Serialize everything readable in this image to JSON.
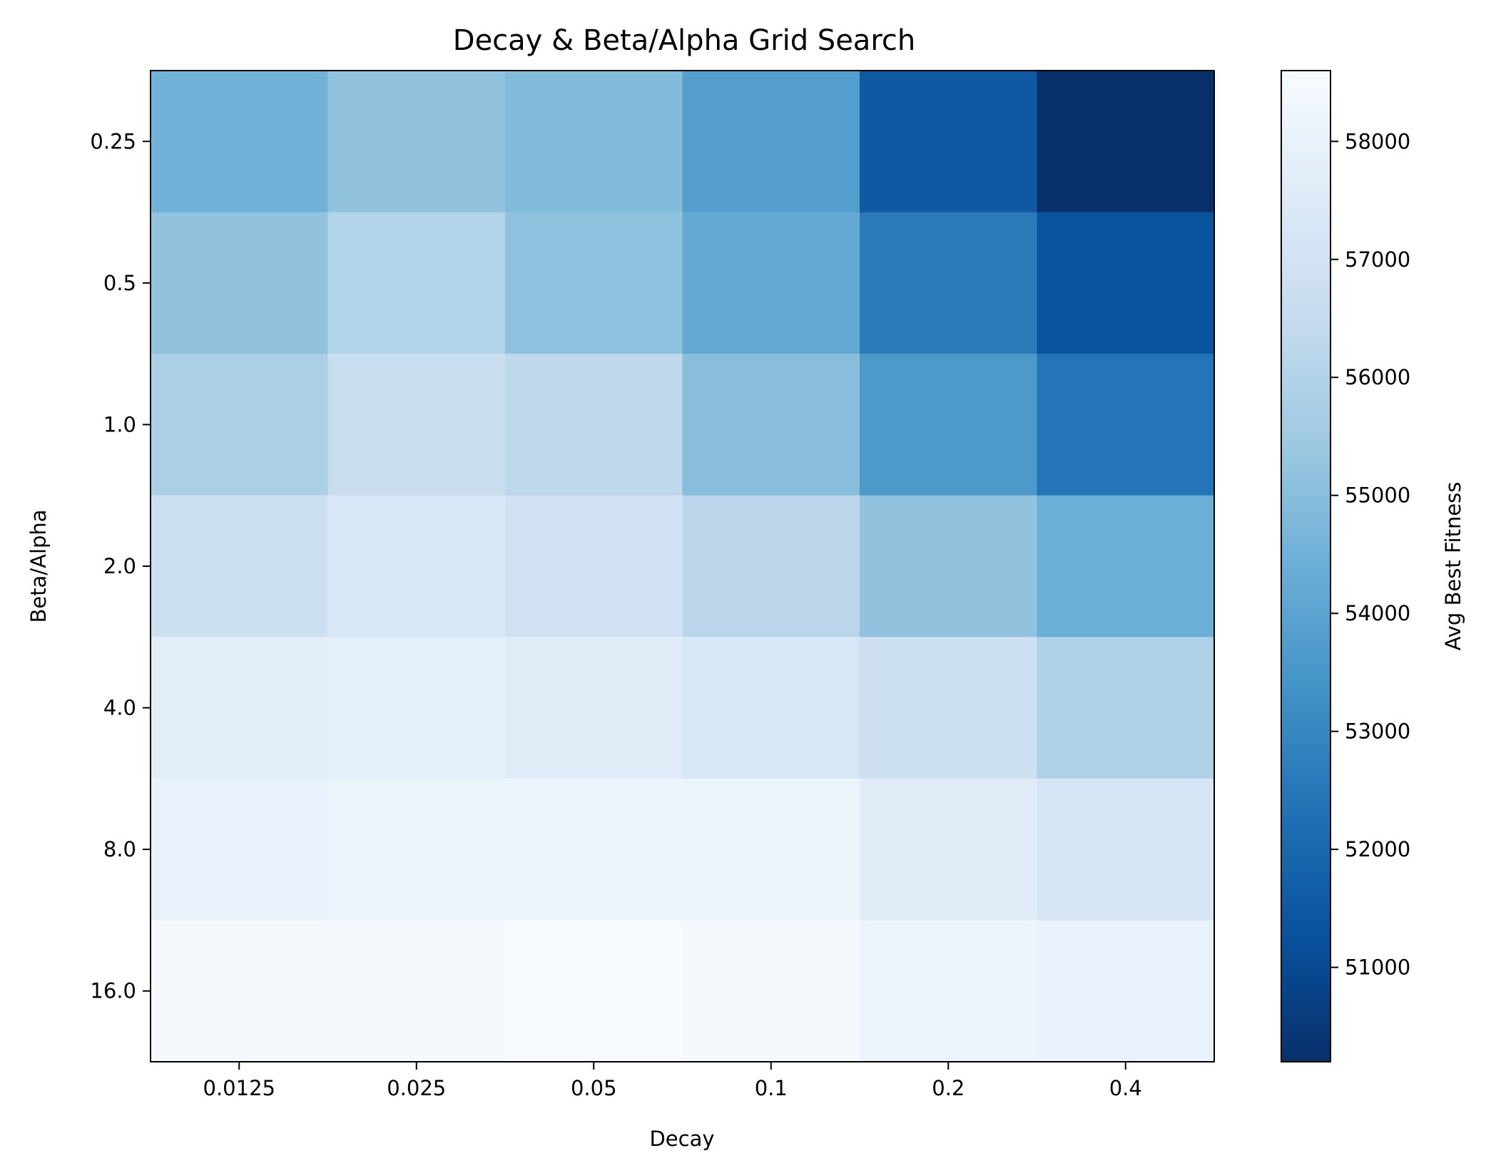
{
  "chart_data": {
    "type": "heatmap",
    "title": "Decay & Beta/Alpha Grid Search",
    "xlabel": "Decay",
    "ylabel": "Beta/Alpha",
    "x_categories": [
      "0.0125",
      "0.025",
      "0.05",
      "0.1",
      "0.2",
      "0.4"
    ],
    "y_categories": [
      "0.25",
      "0.5",
      "1.0",
      "2.0",
      "4.0",
      "8.0",
      "16.0"
    ],
    "values": [
      [
        54500,
        55200,
        54900,
        53800,
        51500,
        50200
      ],
      [
        55200,
        56000,
        55100,
        54200,
        52600,
        51300
      ],
      [
        55800,
        56600,
        56300,
        55000,
        53600,
        52400
      ],
      [
        56800,
        57300,
        56900,
        56200,
        55200,
        54400
      ],
      [
        57700,
        57800,
        57600,
        57300,
        56800,
        55900
      ],
      [
        58000,
        58100,
        58200,
        58100,
        57600,
        57200
      ],
      [
        58500,
        58500,
        58600,
        58500,
        58200,
        58000
      ]
    ],
    "colormap": "Blues_r",
    "colorbar": {
      "label": "Avg Best Fitness",
      "range": [
        50200,
        58600
      ],
      "ticks": [
        "51000",
        "52000",
        "53000",
        "54000",
        "55000",
        "56000",
        "57000",
        "58000"
      ]
    },
    "grid": false,
    "legend": "none"
  }
}
